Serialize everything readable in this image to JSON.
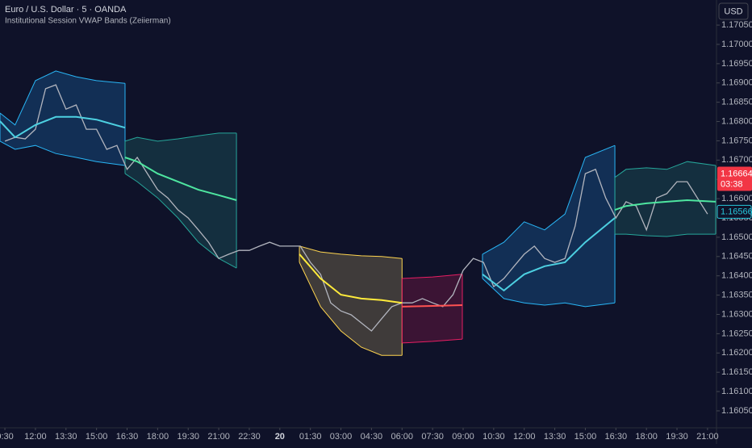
{
  "chart_data": {
    "type": "vwap-sessions",
    "title": "Euro / U.S. Dollar · 5 · OANDA",
    "subtitle": "Institutional Session VWAP Bands (Zeiierman)",
    "currency": "USD",
    "color": "#b2b5be",
    "xlim": [
      10.26,
      45.44
    ],
    "ylim": [
      1.16006,
      1.17115
    ],
    "xticks": [
      {
        "value": 10.5,
        "label": "0:30"
      },
      {
        "value": 12,
        "label": "12:00"
      },
      {
        "value": 13.5,
        "label": "13:30"
      },
      {
        "value": 15,
        "label": "15:00"
      },
      {
        "value": 16.5,
        "label": "16:30"
      },
      {
        "value": 18,
        "label": "18:00"
      },
      {
        "value": 19.5,
        "label": "19:30"
      },
      {
        "value": 21,
        "label": "21:00"
      },
      {
        "value": 22.5,
        "label": "22:30"
      },
      {
        "value": 24,
        "label": "20"
      },
      {
        "value": 25.5,
        "label": "01:30"
      },
      {
        "value": 27,
        "label": "03:00"
      },
      {
        "value": 28.5,
        "label": "04:30"
      },
      {
        "value": 30,
        "label": "06:00"
      },
      {
        "value": 31.5,
        "label": "07:30"
      },
      {
        "value": 33,
        "label": "09:00"
      },
      {
        "value": 34.5,
        "label": "10:30"
      },
      {
        "value": 36,
        "label": "12:00"
      },
      {
        "value": 37.5,
        "label": "13:30"
      },
      {
        "value": 39,
        "label": "15:00"
      },
      {
        "value": 40.5,
        "label": "16:30"
      },
      {
        "value": 42,
        "label": "18:00"
      },
      {
        "value": 43.5,
        "label": "19:30"
      },
      {
        "value": 45,
        "label": "21:00"
      }
    ],
    "yticks": [
      {
        "value": 1.1705,
        "label": "1.17050"
      },
      {
        "value": 1.17,
        "label": "1.17000"
      },
      {
        "value": 1.1695,
        "label": "1.16950"
      },
      {
        "value": 1.169,
        "label": "1.16900"
      },
      {
        "value": 1.1685,
        "label": "1.16850"
      },
      {
        "value": 1.168,
        "label": "1.16800"
      },
      {
        "value": 1.1675,
        "label": "1.16750"
      },
      {
        "value": 1.167,
        "label": "1.16700"
      },
      {
        "value": 1.1665,
        "label": "1.16650"
      },
      {
        "value": 1.166,
        "label": "1.16600"
      },
      {
        "value": 1.1655,
        "label": "1.16550"
      },
      {
        "value": 1.165,
        "label": "1.16500"
      },
      {
        "value": 1.1645,
        "label": "1.16450"
      },
      {
        "value": 1.164,
        "label": "1.16400"
      },
      {
        "value": 1.1635,
        "label": "1.16350"
      },
      {
        "value": 1.163,
        "label": "1.16300"
      },
      {
        "value": 1.1625,
        "label": "1.16250"
      },
      {
        "value": 1.162,
        "label": "1.16200"
      },
      {
        "value": 1.1615,
        "label": "1.16150"
      },
      {
        "value": 1.161,
        "label": "1.16100"
      },
      {
        "value": 1.1605,
        "label": "1.16050"
      }
    ],
    "x": [
      10.5,
      11,
      11.5,
      12,
      12.5,
      13,
      13.5,
      14,
      14.5,
      15,
      15.5,
      16,
      16.5,
      17,
      17.5,
      18,
      18.5,
      19,
      19.5,
      20,
      20.5,
      21,
      21.5,
      22,
      22.5,
      23,
      23.5,
      24,
      24.5,
      25,
      25.5,
      26,
      26.5,
      27,
      27.5,
      28,
      28.5,
      29,
      29.5,
      30,
      30.5,
      31,
      31.5,
      32,
      32.5,
      33,
      33.5,
      34,
      34.5,
      35,
      35.5,
      36,
      36.5,
      37,
      37.5,
      38,
      38.5,
      39,
      39.5,
      40,
      40.5,
      41,
      41.5,
      42,
      42.5,
      43,
      43.5,
      44,
      44.5,
      45
    ],
    "values": [
      1.16749,
      1.16759,
      1.16755,
      1.1678,
      1.16885,
      1.16895,
      1.16832,
      1.16843,
      1.1678,
      1.1678,
      1.16728,
      1.16738,
      1.16676,
      1.16707,
      1.16665,
      1.16623,
      1.16602,
      1.16571,
      1.1655,
      1.16519,
      1.16487,
      1.16445,
      1.16456,
      1.16466,
      1.16466,
      1.16477,
      1.16487,
      1.16477,
      1.16477,
      1.16477,
      1.16435,
      1.16404,
      1.1633,
      1.16309,
      1.16299,
      1.16278,
      1.16257,
      1.16289,
      1.1632,
      1.1633,
      1.1633,
      1.16341,
      1.1633,
      1.1632,
      1.16351,
      1.16414,
      1.16445,
      1.16435,
      1.16372,
      1.16393,
      1.16425,
      1.16456,
      1.16477,
      1.16445,
      1.16435,
      1.16445,
      1.16529,
      1.16665,
      1.16676,
      1.16602,
      1.1655,
      1.16592,
      1.16581,
      1.16519,
      1.16602,
      1.16613,
      1.16644,
      1.16644,
      1.16602,
      1.1656
    ],
    "sessions": [
      {
        "color": "#29b6f6",
        "mid_color": "#4dd0e1",
        "fill": "rgba(33,150,243,0.22)",
        "x": [
          10.26,
          11,
          12,
          13,
          14,
          15,
          16.4
        ],
        "upper": [
          1.16822,
          1.16791,
          1.16906,
          1.16931,
          1.16916,
          1.16906,
          1.16899
        ],
        "vwap": [
          1.16801,
          1.16759,
          1.16791,
          1.16812,
          1.16812,
          1.16805,
          1.16784
        ],
        "lower": [
          1.16749,
          1.16728,
          1.16738,
          1.16717,
          1.16707,
          1.16696,
          1.16686
        ]
      },
      {
        "color": "#26a69a",
        "mid_color": "#4ee6a0",
        "fill": "rgba(38,166,154,0.2)",
        "x": [
          16.4,
          17,
          18,
          19,
          20,
          21,
          21.87
        ],
        "upper": [
          1.16749,
          1.16759,
          1.16749,
          1.16755,
          1.16763,
          1.1677,
          1.1677
        ],
        "vwap": [
          1.16707,
          1.16696,
          1.16665,
          1.16644,
          1.16623,
          1.16609,
          1.16596
        ],
        "lower": [
          1.16665,
          1.16644,
          1.16602,
          1.1655,
          1.16487,
          1.16445,
          1.1642
        ]
      },
      {
        "color": "#ffd54f",
        "mid_color": "#ffeb3b",
        "fill": "rgba(255,224,130,0.2)",
        "x": [
          24.96,
          26,
          27,
          28,
          29,
          30
        ],
        "upper": [
          1.16477,
          1.16462,
          1.16456,
          1.16452,
          1.1645,
          1.16445
        ],
        "vwap": [
          1.16456,
          1.16393,
          1.16351,
          1.16341,
          1.16337,
          1.1633
        ],
        "lower": [
          1.16435,
          1.1632,
          1.16257,
          1.16215,
          1.16194,
          1.16194
        ]
      },
      {
        "color": "#e91e63",
        "mid_color": "#ff5252",
        "fill": "rgba(233,30,99,0.2)",
        "x": [
          30,
          31.5,
          32.96
        ],
        "upper": [
          1.16393,
          1.16397,
          1.16404
        ],
        "vwap": [
          1.1632,
          1.16322,
          1.16324
        ],
        "lower": [
          1.16226,
          1.1623,
          1.16236
        ]
      },
      {
        "color": "#29b6f6",
        "mid_color": "#4dd0e1",
        "fill": "rgba(33,150,243,0.22)",
        "x": [
          33.95,
          35,
          36,
          37,
          38,
          39,
          40.45
        ],
        "upper": [
          1.16456,
          1.16487,
          1.1654,
          1.16519,
          1.1656,
          1.16707,
          1.16738
        ],
        "vwap": [
          1.16404,
          1.16362,
          1.16404,
          1.16425,
          1.16435,
          1.16487,
          1.1655
        ],
        "lower": [
          1.16393,
          1.16341,
          1.1633,
          1.16324,
          1.1633,
          1.1632,
          1.1633
        ]
      },
      {
        "color": "#26a69a",
        "mid_color": "#4ee6a0",
        "fill": "rgba(38,166,154,0.2)",
        "x": [
          40.45,
          41,
          42,
          43,
          44,
          45.4
        ],
        "upper": [
          1.16655,
          1.16676,
          1.1668,
          1.16676,
          1.16696,
          1.16686
        ],
        "vwap": [
          1.16571,
          1.16581,
          1.16588,
          1.16592,
          1.16596,
          1.16592
        ],
        "lower": [
          1.16508,
          1.16508,
          1.16504,
          1.16502,
          1.16508,
          1.16508
        ]
      }
    ],
    "price_label": {
      "value": 1.16664,
      "label": "1.16664",
      "countdown": "03:38",
      "color": "#f23645"
    },
    "vwap_label": {
      "value": 1.16566,
      "label": "1.16566",
      "color": "#26c6da"
    }
  }
}
